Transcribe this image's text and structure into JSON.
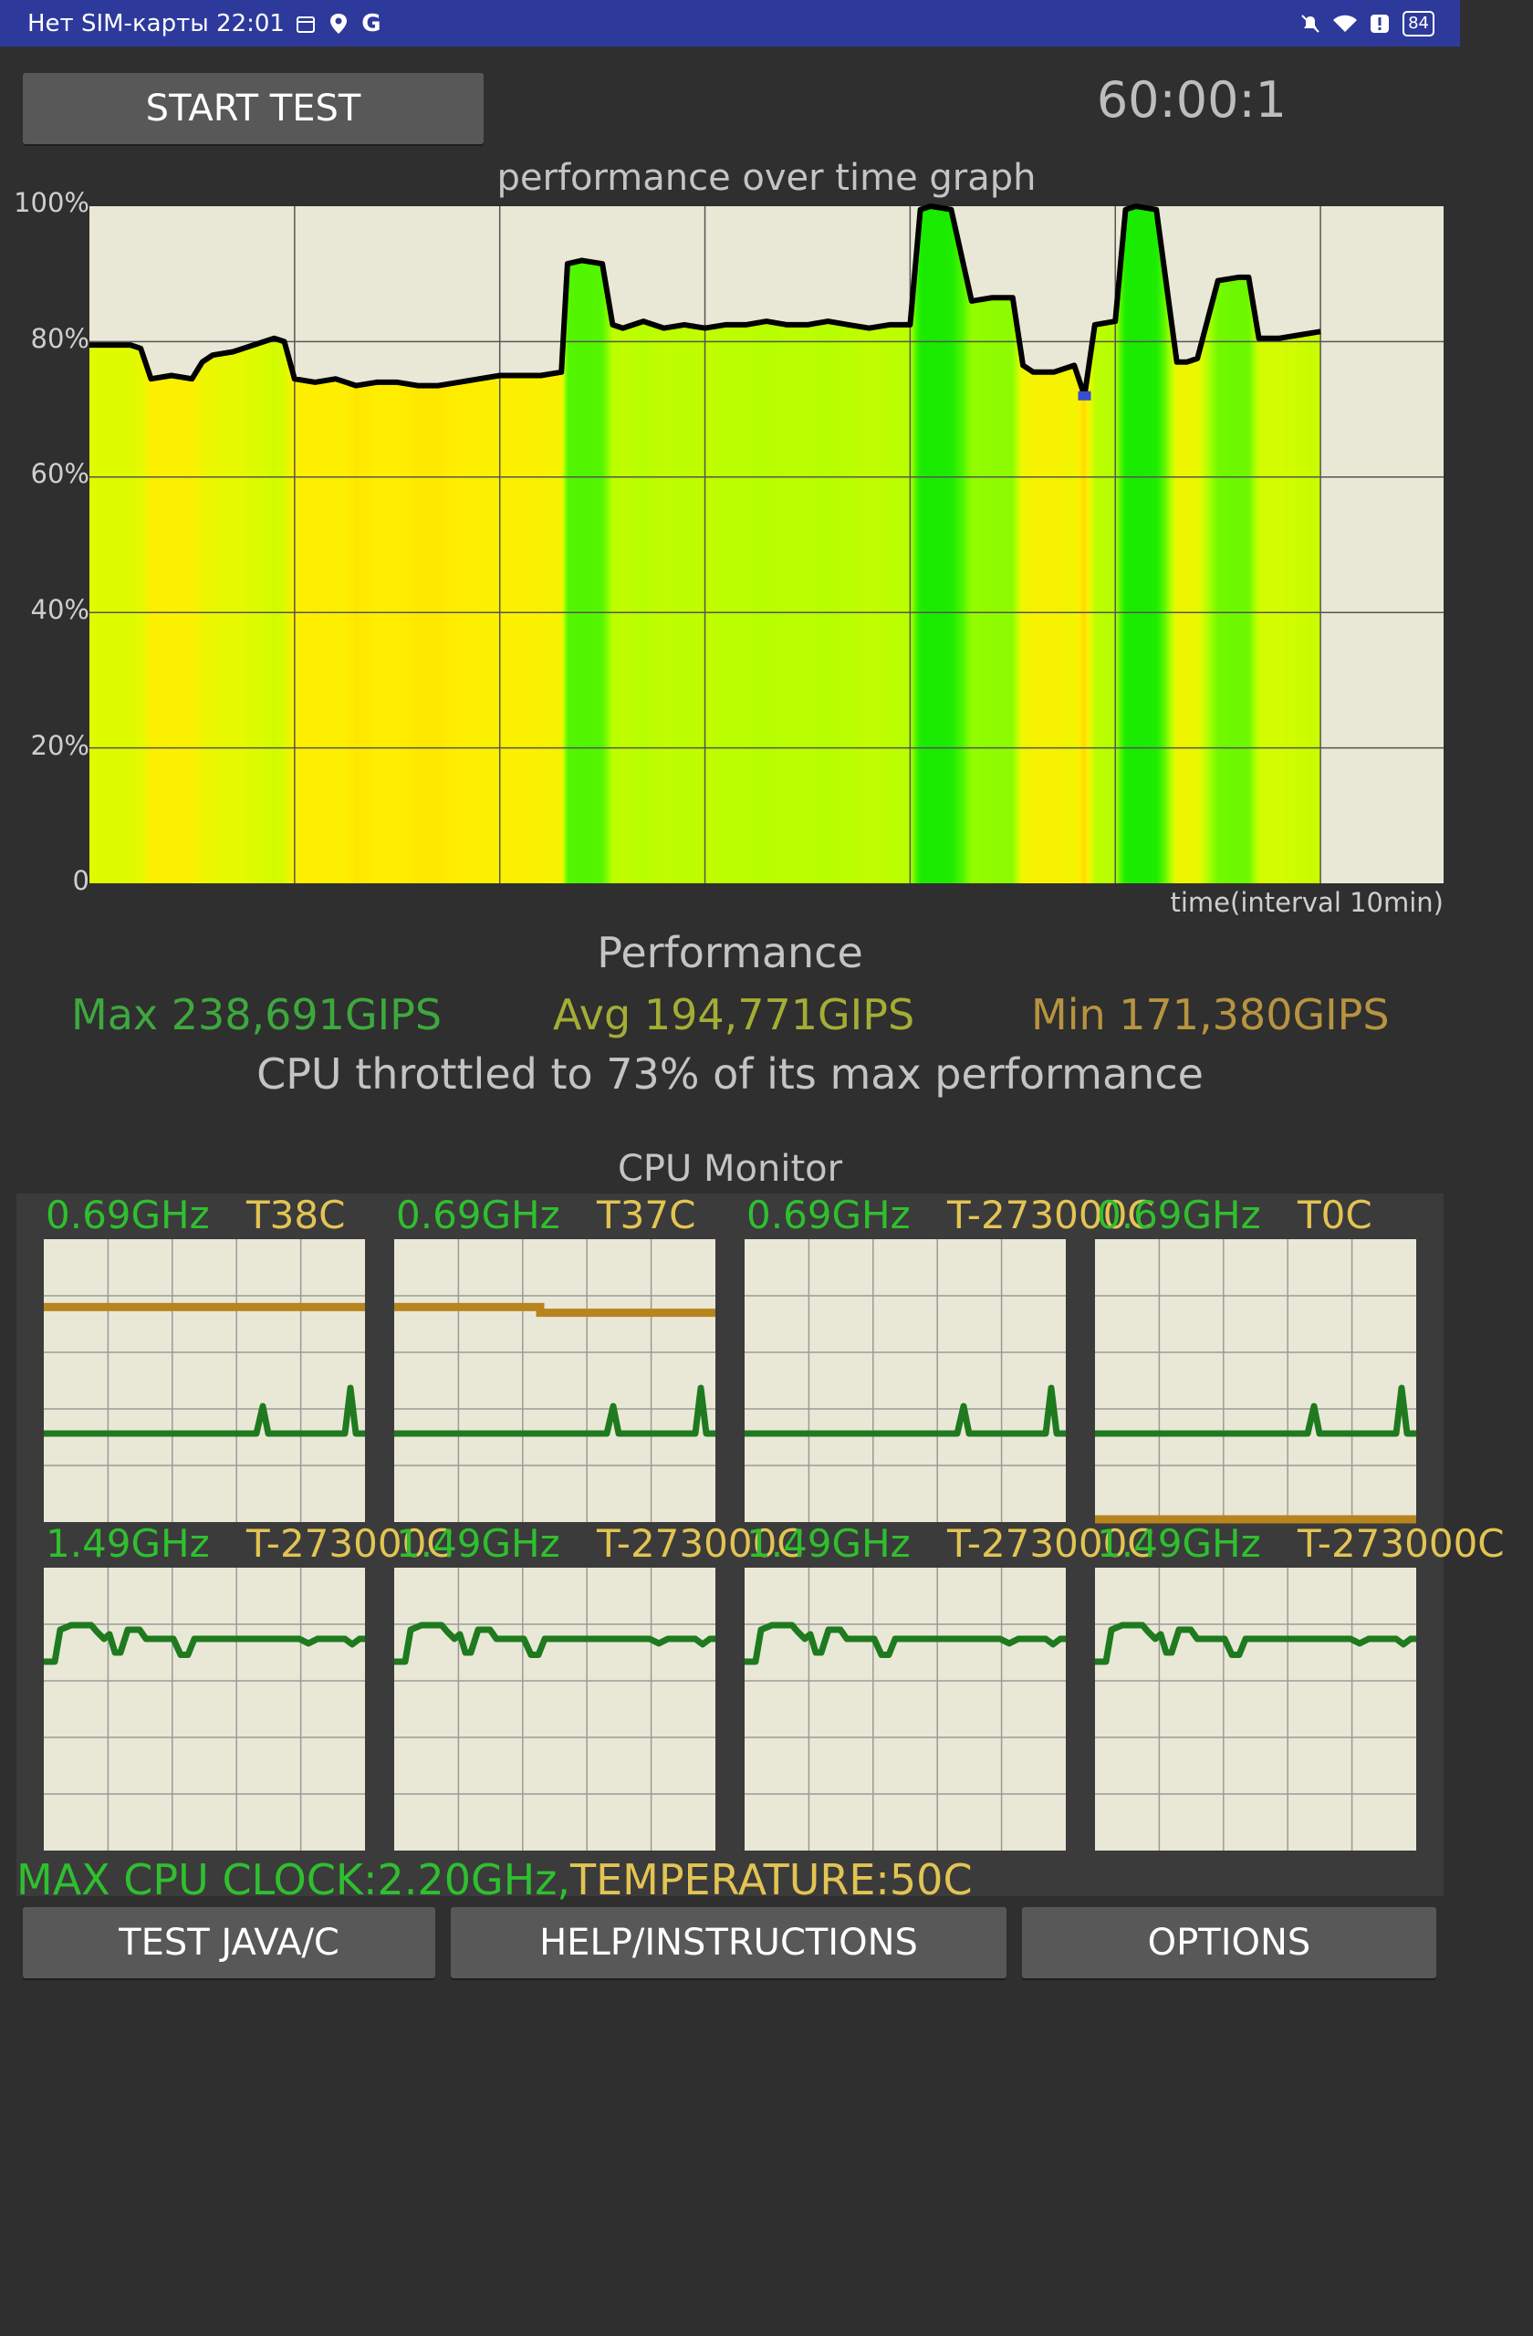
{
  "status_bar": {
    "carrier_time": "Нет SIM-карты 22:01",
    "battery": "84",
    "icons": [
      "calendar-icon",
      "location-icon",
      "google-icon",
      "mute-icon",
      "wifi-icon",
      "alert-icon",
      "battery-icon"
    ]
  },
  "controls": {
    "start_label": "START TEST",
    "timer": "60:00:1"
  },
  "graph": {
    "title": "performance over time graph",
    "xlabel": "time(interval 10min)",
    "yticks": [
      "100%",
      "80%",
      "60%",
      "40%",
      "20%",
      "0"
    ]
  },
  "chart_data": {
    "type": "area",
    "title": "performance over time graph",
    "xlabel": "time(interval 10min)",
    "ylabel": "",
    "ylim": [
      0,
      100
    ],
    "xlim": [
      0,
      66
    ],
    "grid": true,
    "y_ticks": [
      "0",
      "20%",
      "40%",
      "60%",
      "80%",
      "100%"
    ],
    "series": [
      {
        "x": [
          0,
          2,
          2.5,
          3,
          4,
          5,
          5.5,
          6,
          7,
          8,
          9,
          9.5,
          10,
          11,
          12,
          13,
          14,
          15,
          16,
          17,
          18,
          19,
          20,
          21,
          22,
          23,
          23.3,
          24,
          25,
          25.5,
          26,
          27,
          28,
          29,
          30,
          31,
          32,
          33,
          34,
          35,
          36,
          37,
          38,
          39,
          40,
          40.5,
          41,
          42,
          43,
          44,
          45,
          45.5,
          46,
          47,
          48,
          48.5,
          49,
          50,
          50.5,
          51,
          52,
          53,
          53.5,
          54,
          55,
          56,
          56.5,
          57,
          58,
          59,
          60
        ],
        "y": [
          79.5,
          79.5,
          79,
          74.5,
          75,
          74.5,
          77,
          78,
          78.5,
          79.5,
          80.5,
          80,
          74.5,
          74,
          74.5,
          73.5,
          74,
          74,
          73.5,
          73.5,
          74,
          74.5,
          75,
          75,
          75,
          75.5,
          91.5,
          92,
          91.5,
          82.5,
          82,
          83,
          82,
          82.5,
          82,
          82.5,
          82.5,
          83,
          82.5,
          82.5,
          83,
          82.5,
          82,
          82.5,
          82.5,
          99.5,
          100,
          99.5,
          86,
          86.5,
          86.5,
          76.5,
          75.5,
          75.5,
          76.5,
          72,
          82.5,
          83,
          99.5,
          100,
          99.5,
          77,
          77,
          77.5,
          89,
          89.5,
          89.5,
          80.5,
          80.5,
          81,
          81.5
        ]
      }
    ],
    "min_point": {
      "x": 48.5,
      "y": 72
    }
  },
  "performance": {
    "title": "Performance",
    "max": "Max 238,691GIPS",
    "avg": "Avg 194,771GIPS",
    "min": "Min 171,380GIPS",
    "throttle": "CPU throttled to 73% of its max performance"
  },
  "cpu_monitor": {
    "title": "CPU Monitor",
    "cores": [
      {
        "freq": "0.69GHz",
        "temp": "T38C",
        "temp_level": 0.76
      },
      {
        "freq": "0.69GHz",
        "temp": "T37C",
        "temp_level": 0.74
      },
      {
        "freq": "0.69GHz",
        "temp": "T-273000C",
        "temp_level": null
      },
      {
        "freq": "0.69GHz",
        "temp": "T0C",
        "temp_level": 0.0
      },
      {
        "freq": "1.49GHz",
        "temp": "T-273000C",
        "temp_level": null
      },
      {
        "freq": "1.49GHz",
        "temp": "T-273000C",
        "temp_level": null
      },
      {
        "freq": "1.49GHz",
        "temp": "T-273000C",
        "temp_level": null
      },
      {
        "freq": "1.49GHz",
        "temp": "T-273000C",
        "temp_level": null
      }
    ],
    "max_clock": "MAX CPU CLOCK:2.20GHz,",
    "temperature": "TEMPERATURE:50C"
  },
  "buttons": {
    "java": "TEST JAVA/C",
    "help": "HELP/INSTRUCTIONS",
    "options": "OPTIONS"
  },
  "colors": {
    "background": "#2f2f2f",
    "status_bar": "#2d3a9c",
    "button": "#585858",
    "graph_bg": "#e9e8d6",
    "freq_green": "#2fbf2f",
    "temp_yellow": "#e3c453",
    "max_green": "#3ea83e",
    "avg_yellow": "#a4ad34",
    "min_orange": "#b89440",
    "cpu_line": "#1f7a1f",
    "temp_line": "#b8841e"
  }
}
